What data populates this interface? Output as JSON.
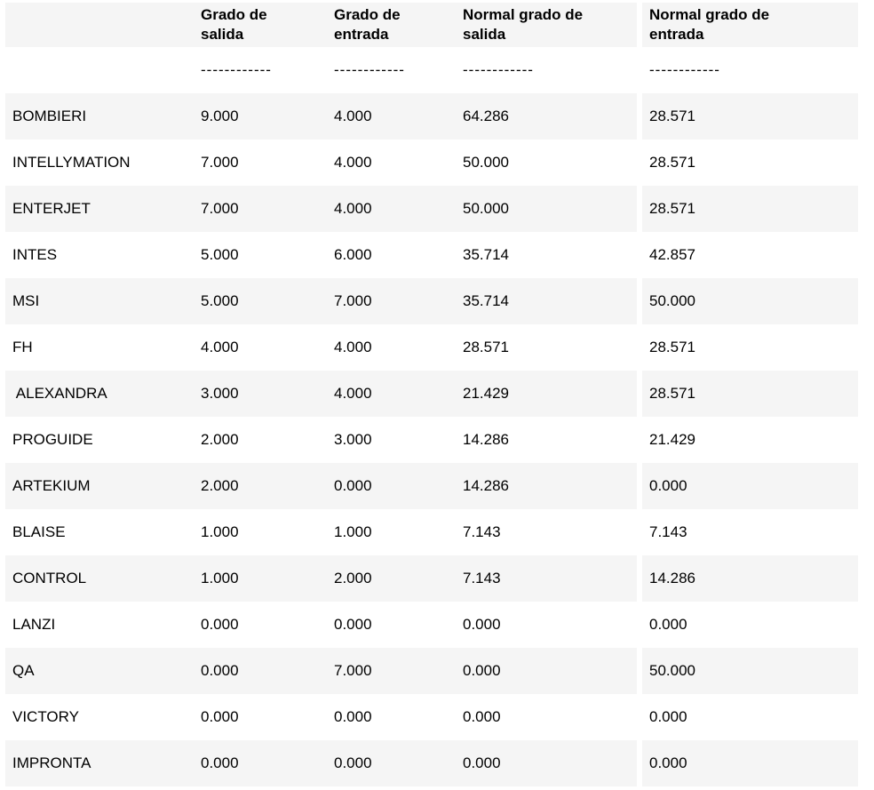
{
  "colors": {
    "stripe": "#f5f5f5",
    "background": "#ffffff",
    "text": "#000000"
  },
  "table": {
    "columns": [
      "",
      "Grado de salida",
      "Grado de entrada",
      "Normal grado de salida",
      "Normal grado de entrada"
    ],
    "separator": "------------",
    "rows": [
      {
        "name": "BOMBIERI",
        "values": [
          "9.000",
          "4.000",
          "64.286",
          "28.571"
        ]
      },
      {
        "name": "INTELLYMATION",
        "values": [
          "7.000",
          "4.000",
          "50.000",
          "28.571"
        ]
      },
      {
        "name": "ENTERJET",
        "values": [
          "7.000",
          "4.000",
          "50.000",
          "28.571"
        ]
      },
      {
        "name": "INTES",
        "values": [
          "5.000",
          "6.000",
          "35.714",
          "42.857"
        ]
      },
      {
        "name": "MSI",
        "values": [
          "5.000",
          "7.000",
          "35.714",
          "50.000"
        ]
      },
      {
        "name": "FH",
        "values": [
          "4.000",
          "4.000",
          "28.571",
          "28.571"
        ]
      },
      {
        "name": " ALEXANDRA",
        "values": [
          "3.000",
          "4.000",
          "21.429",
          "28.571"
        ]
      },
      {
        "name": "PROGUIDE",
        "values": [
          "2.000",
          "3.000",
          "14.286",
          "21.429"
        ]
      },
      {
        "name": "ARTEKIUM",
        "values": [
          "2.000",
          "0.000",
          "14.286",
          "0.000"
        ]
      },
      {
        "name": "BLAISE",
        "values": [
          "1.000",
          "1.000",
          "7.143",
          "7.143"
        ]
      },
      {
        "name": "CONTROL",
        "values": [
          "1.000",
          "2.000",
          "7.143",
          "14.286"
        ]
      },
      {
        "name": "LANZI",
        "values": [
          "0.000",
          "0.000",
          "0.000",
          "0.000"
        ]
      },
      {
        "name": "QA",
        "values": [
          "0.000",
          "7.000",
          "0.000",
          "50.000"
        ]
      },
      {
        "name": "VICTORY",
        "values": [
          "0.000",
          "0.000",
          "0.000",
          "0.000"
        ]
      },
      {
        "name": "IMPRONTA",
        "values": [
          "0.000",
          "0.000",
          "0.000",
          "0.000"
        ]
      }
    ]
  }
}
